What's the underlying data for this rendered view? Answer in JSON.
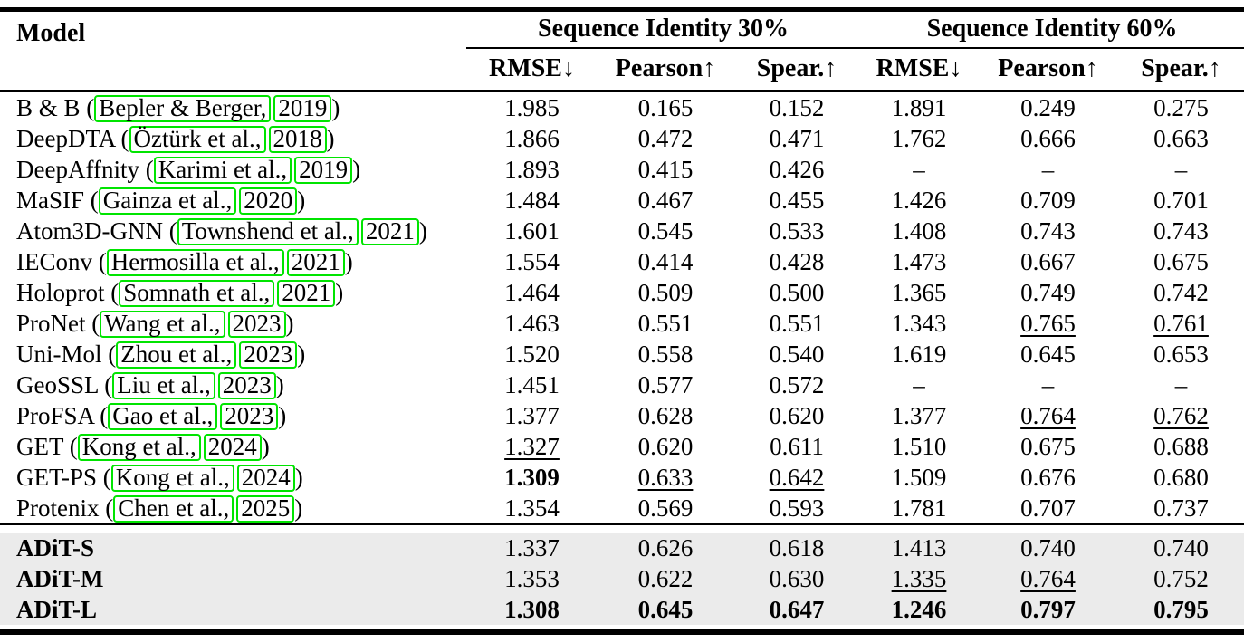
{
  "colors": {
    "citation_box_border": "#00e400",
    "highlight_row_bg": "#ebebeb",
    "rule_color": "#000000"
  },
  "table": {
    "model_header": "Model",
    "groups": [
      {
        "label": "Sequence Identity 30%"
      },
      {
        "label": "Sequence Identity 60%"
      }
    ],
    "subheaders": [
      "RMSE↓",
      "Pearson↑",
      "Spear.↑",
      "RMSE↓",
      "Pearson↑",
      "Spear.↑"
    ],
    "rows": [
      {
        "prefix": "B & B (",
        "author": "Bepler & Berger,",
        "year": "2019",
        "suffix": ")",
        "cells": [
          {
            "v": "1.985"
          },
          {
            "v": "0.165"
          },
          {
            "v": "0.152"
          },
          {
            "v": "1.891"
          },
          {
            "v": "0.249"
          },
          {
            "v": "0.275"
          }
        ]
      },
      {
        "prefix": "DeepDTA (",
        "author": "Öztürk et al.,",
        "year": "2018",
        "suffix": ")",
        "cells": [
          {
            "v": "1.866"
          },
          {
            "v": "0.472"
          },
          {
            "v": "0.471"
          },
          {
            "v": "1.762"
          },
          {
            "v": "0.666"
          },
          {
            "v": "0.663"
          }
        ]
      },
      {
        "prefix": "DeepAffnity (",
        "author": "Karimi et al.,",
        "year": "2019",
        "suffix": ")",
        "cells": [
          {
            "v": "1.893"
          },
          {
            "v": "0.415"
          },
          {
            "v": "0.426"
          },
          {
            "v": "–"
          },
          {
            "v": "–"
          },
          {
            "v": "–"
          }
        ]
      },
      {
        "prefix": "MaSIF (",
        "author": "Gainza et al.,",
        "year": "2020",
        "suffix": ")",
        "cells": [
          {
            "v": "1.484"
          },
          {
            "v": "0.467"
          },
          {
            "v": "0.455"
          },
          {
            "v": "1.426"
          },
          {
            "v": "0.709"
          },
          {
            "v": "0.701"
          }
        ]
      },
      {
        "prefix": "Atom3D-GNN (",
        "author": "Townshend et al.,",
        "year": "2021",
        "suffix": ")",
        "cells": [
          {
            "v": "1.601"
          },
          {
            "v": "0.545"
          },
          {
            "v": "0.533"
          },
          {
            "v": "1.408"
          },
          {
            "v": "0.743"
          },
          {
            "v": "0.743"
          }
        ]
      },
      {
        "prefix": "IEConv (",
        "author": "Hermosilla et al.,",
        "year": "2021",
        "suffix": ")",
        "cells": [
          {
            "v": "1.554"
          },
          {
            "v": "0.414"
          },
          {
            "v": "0.428"
          },
          {
            "v": "1.473"
          },
          {
            "v": "0.667"
          },
          {
            "v": "0.675"
          }
        ]
      },
      {
        "prefix": "Holoprot (",
        "author": "Somnath et al.,",
        "year": "2021",
        "suffix": ")",
        "cells": [
          {
            "v": "1.464"
          },
          {
            "v": "0.509"
          },
          {
            "v": "0.500"
          },
          {
            "v": "1.365"
          },
          {
            "v": "0.749"
          },
          {
            "v": "0.742"
          }
        ]
      },
      {
        "prefix": "ProNet (",
        "author": "Wang et al.,",
        "year": "2023",
        "suffix": ")",
        "cells": [
          {
            "v": "1.463"
          },
          {
            "v": "0.551"
          },
          {
            "v": "0.551"
          },
          {
            "v": "1.343"
          },
          {
            "v": "0.765",
            "s": "u"
          },
          {
            "v": "0.761",
            "s": "u"
          }
        ]
      },
      {
        "prefix": "Uni-Mol (",
        "author": "Zhou et al.,",
        "year": "2023",
        "suffix": ")",
        "cells": [
          {
            "v": "1.520"
          },
          {
            "v": "0.558"
          },
          {
            "v": "0.540"
          },
          {
            "v": "1.619"
          },
          {
            "v": "0.645"
          },
          {
            "v": "0.653"
          }
        ]
      },
      {
        "prefix": "GeoSSL (",
        "author": "Liu et al.,",
        "year": "2023",
        "suffix": ")",
        "cells": [
          {
            "v": "1.451"
          },
          {
            "v": "0.577"
          },
          {
            "v": "0.572"
          },
          {
            "v": "–"
          },
          {
            "v": "–"
          },
          {
            "v": "–"
          }
        ]
      },
      {
        "prefix": "ProFSA (",
        "author": "Gao et al.,",
        "year": "2023",
        "suffix": ")",
        "cells": [
          {
            "v": "1.377"
          },
          {
            "v": "0.628"
          },
          {
            "v": "0.620"
          },
          {
            "v": "1.377"
          },
          {
            "v": "0.764",
            "s": "u"
          },
          {
            "v": "0.762",
            "s": "u"
          }
        ]
      },
      {
        "prefix": "GET (",
        "author": "Kong et al.,",
        "year": "2024",
        "suffix": ")",
        "cells": [
          {
            "v": "1.327",
            "s": "u"
          },
          {
            "v": "0.620"
          },
          {
            "v": "0.611"
          },
          {
            "v": "1.510"
          },
          {
            "v": "0.675"
          },
          {
            "v": "0.688"
          }
        ]
      },
      {
        "prefix": "GET-PS (",
        "author": "Kong et al.,",
        "year": "2024",
        "suffix": ")",
        "cells": [
          {
            "v": "1.309",
            "s": "b"
          },
          {
            "v": "0.633",
            "s": "u"
          },
          {
            "v": "0.642",
            "s": "u"
          },
          {
            "v": "1.509"
          },
          {
            "v": "0.676"
          },
          {
            "v": "0.680"
          }
        ]
      },
      {
        "prefix": "Protenix (",
        "author": "Chen et al.,",
        "year": "2025",
        "suffix": ")",
        "cells": [
          {
            "v": "1.354"
          },
          {
            "v": "0.569"
          },
          {
            "v": "0.593"
          },
          {
            "v": "1.781"
          },
          {
            "v": "0.707"
          },
          {
            "v": "0.737"
          }
        ]
      }
    ],
    "highlight_rows": [
      {
        "label": "ADiT-S",
        "cells": [
          {
            "v": "1.337"
          },
          {
            "v": "0.626"
          },
          {
            "v": "0.618"
          },
          {
            "v": "1.413"
          },
          {
            "v": "0.740"
          },
          {
            "v": "0.740"
          }
        ]
      },
      {
        "label": "ADiT-M",
        "cells": [
          {
            "v": "1.353"
          },
          {
            "v": "0.622"
          },
          {
            "v": "0.630"
          },
          {
            "v": "1.335",
            "s": "u"
          },
          {
            "v": "0.764",
            "s": "u"
          },
          {
            "v": "0.752"
          }
        ]
      },
      {
        "label": "ADiT-L",
        "cells": [
          {
            "v": "1.308",
            "s": "b"
          },
          {
            "v": "0.645",
            "s": "b"
          },
          {
            "v": "0.647",
            "s": "b"
          },
          {
            "v": "1.246",
            "s": "b"
          },
          {
            "v": "0.797",
            "s": "b"
          },
          {
            "v": "0.795",
            "s": "b"
          }
        ]
      }
    ]
  }
}
